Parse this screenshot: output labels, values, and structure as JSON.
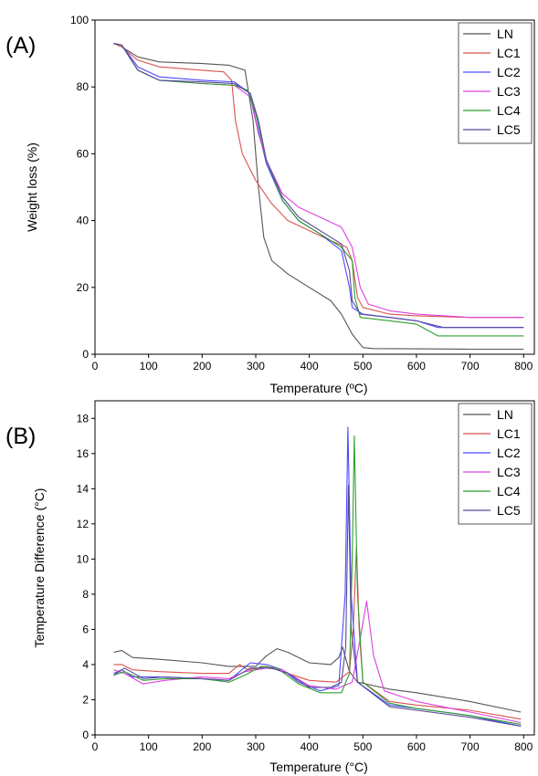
{
  "chart_data": [
    {
      "panel_label": "(A)",
      "type": "line",
      "xlabel": "Temperature (ºC)",
      "ylabel": "Weight loss (%)",
      "xlim": [
        0,
        820
      ],
      "ylim": [
        0,
        100
      ],
      "xticks": [
        0,
        100,
        200,
        300,
        400,
        500,
        600,
        700,
        800
      ],
      "yticks": [
        0,
        20,
        40,
        60,
        80,
        100
      ],
      "legend_position": "top-right",
      "grid": false,
      "series": [
        {
          "name": "LN",
          "color": "#555555",
          "points": [
            [
              35,
              93
            ],
            [
              50,
              92
            ],
            [
              80,
              89
            ],
            [
              120,
              87.5
            ],
            [
              200,
              87
            ],
            [
              250,
              86.5
            ],
            [
              280,
              85
            ],
            [
              295,
              70
            ],
            [
              305,
              50
            ],
            [
              315,
              35
            ],
            [
              330,
              28
            ],
            [
              360,
              24
            ],
            [
              400,
              20
            ],
            [
              440,
              16
            ],
            [
              460,
              12
            ],
            [
              480,
              6
            ],
            [
              500,
              2
            ],
            [
              520,
              1.7
            ],
            [
              600,
              1.6
            ],
            [
              700,
              1.5
            ],
            [
              800,
              1.5
            ]
          ]
        },
        {
          "name": "LC1",
          "color": "#d9534f",
          "points": [
            [
              35,
              93
            ],
            [
              50,
              92
            ],
            [
              80,
              88
            ],
            [
              120,
              86
            ],
            [
              200,
              85
            ],
            [
              240,
              84.5
            ],
            [
              255,
              82
            ],
            [
              262,
              70
            ],
            [
              275,
              60
            ],
            [
              300,
              52
            ],
            [
              330,
              45
            ],
            [
              360,
              40
            ],
            [
              400,
              37
            ],
            [
              440,
              34
            ],
            [
              470,
              32
            ],
            [
              480,
              28
            ],
            [
              490,
              17
            ],
            [
              500,
              14
            ],
            [
              550,
              12
            ],
            [
              600,
              11.5
            ],
            [
              700,
              11
            ],
            [
              800,
              11
            ]
          ]
        },
        {
          "name": "LC2",
          "color": "#4a4aff",
          "points": [
            [
              35,
              93
            ],
            [
              50,
              92.5
            ],
            [
              80,
              86
            ],
            [
              120,
              83
            ],
            [
              200,
              82
            ],
            [
              260,
              81.5
            ],
            [
              290,
              78
            ],
            [
              300,
              70
            ],
            [
              320,
              57
            ],
            [
              350,
              46
            ],
            [
              380,
              40
            ],
            [
              420,
              36
            ],
            [
              460,
              31
            ],
            [
              475,
              20
            ],
            [
              480,
              14
            ],
            [
              500,
              12
            ],
            [
              550,
              11
            ],
            [
              600,
              10
            ],
            [
              640,
              8
            ],
            [
              700,
              8
            ],
            [
              800,
              8
            ]
          ]
        },
        {
          "name": "LC3",
          "color": "#e040e0",
          "points": [
            [
              35,
              93
            ],
            [
              50,
              92.5
            ],
            [
              80,
              85
            ],
            [
              120,
              82
            ],
            [
              200,
              81
            ],
            [
              260,
              80.5
            ],
            [
              290,
              77
            ],
            [
              305,
              66
            ],
            [
              320,
              58
            ],
            [
              350,
              48
            ],
            [
              380,
              44
            ],
            [
              420,
              41
            ],
            [
              460,
              38
            ],
            [
              480,
              32
            ],
            [
              495,
              20
            ],
            [
              510,
              15
            ],
            [
              550,
              13
            ],
            [
              600,
              12
            ],
            [
              700,
              11
            ],
            [
              800,
              11
            ]
          ]
        },
        {
          "name": "LC4",
          "color": "#2ea02e",
          "points": [
            [
              35,
              93
            ],
            [
              50,
              92.5
            ],
            [
              80,
              85
            ],
            [
              120,
              82
            ],
            [
              200,
              81
            ],
            [
              260,
              80.5
            ],
            [
              285,
              79
            ],
            [
              300,
              72
            ],
            [
              320,
              58
            ],
            [
              350,
              46
            ],
            [
              380,
              40
            ],
            [
              420,
              36
            ],
            [
              460,
              32
            ],
            [
              480,
              28
            ],
            [
              485,
              17
            ],
            [
              495,
              11
            ],
            [
              550,
              10
            ],
            [
              600,
              9
            ],
            [
              640,
              5.5
            ],
            [
              700,
              5.5
            ],
            [
              800,
              5.5
            ]
          ]
        },
        {
          "name": "LC5",
          "color": "#5a4a9a",
          "points": [
            [
              35,
              93
            ],
            [
              50,
              92.5
            ],
            [
              80,
              85
            ],
            [
              120,
              82
            ],
            [
              200,
              81.5
            ],
            [
              260,
              81
            ],
            [
              290,
              78
            ],
            [
              305,
              70
            ],
            [
              320,
              58
            ],
            [
              350,
              47
            ],
            [
              380,
              41
            ],
            [
              420,
              37
            ],
            [
              460,
              33
            ],
            [
              475,
              25
            ],
            [
              480,
              16
            ],
            [
              495,
              12
            ],
            [
              550,
              11
            ],
            [
              600,
              10
            ],
            [
              650,
              8
            ],
            [
              700,
              8
            ],
            [
              800,
              8
            ]
          ]
        }
      ]
    },
    {
      "panel_label": "(B)",
      "type": "line",
      "xlabel": "Temperature (°C)",
      "ylabel": "Temperature Difference (°C)",
      "xlim": [
        0,
        820
      ],
      "ylim": [
        0,
        19
      ],
      "xticks": [
        0,
        100,
        200,
        300,
        400,
        500,
        600,
        700,
        800
      ],
      "yticks": [
        0,
        2,
        4,
        6,
        8,
        10,
        12,
        14,
        16,
        18
      ],
      "legend_position": "top-right",
      "grid": false,
      "series": [
        {
          "name": "LN",
          "color": "#555555",
          "points": [
            [
              35,
              4.7
            ],
            [
              50,
              4.8
            ],
            [
              70,
              4.4
            ],
            [
              120,
              4.3
            ],
            [
              200,
              4.1
            ],
            [
              250,
              3.9
            ],
            [
              300,
              3.9
            ],
            [
              320,
              4.5
            ],
            [
              340,
              4.9
            ],
            [
              360,
              4.7
            ],
            [
              400,
              4.1
            ],
            [
              440,
              4.0
            ],
            [
              455,
              4.4
            ],
            [
              462,
              5.0
            ],
            [
              475,
              3.6
            ],
            [
              490,
              3.0
            ],
            [
              550,
              2.6
            ],
            [
              600,
              2.4
            ],
            [
              700,
              1.9
            ],
            [
              795,
              1.3
            ]
          ]
        },
        {
          "name": "LC1",
          "color": "#d9534f",
          "points": [
            [
              35,
              4.0
            ],
            [
              50,
              4.0
            ],
            [
              70,
              3.7
            ],
            [
              120,
              3.6
            ],
            [
              200,
              3.5
            ],
            [
              250,
              3.5
            ],
            [
              270,
              4.0
            ],
            [
              285,
              3.7
            ],
            [
              320,
              3.9
            ],
            [
              350,
              3.6
            ],
            [
              400,
              3.1
            ],
            [
              450,
              3.0
            ],
            [
              475,
              3.6
            ],
            [
              482,
              6
            ],
            [
              488,
              10.7
            ],
            [
              493,
              6
            ],
            [
              500,
              3.0
            ],
            [
              550,
              1.9
            ],
            [
              600,
              1.7
            ],
            [
              700,
              1.4
            ],
            [
              795,
              0.9
            ]
          ]
        },
        {
          "name": "LC2",
          "color": "#4a4aff",
          "points": [
            [
              35,
              3.5
            ],
            [
              50,
              3.7
            ],
            [
              70,
              3.3
            ],
            [
              120,
              3.3
            ],
            [
              200,
              3.2
            ],
            [
              250,
              3.1
            ],
            [
              290,
              4.1
            ],
            [
              320,
              4.0
            ],
            [
              350,
              3.7
            ],
            [
              380,
              3.0
            ],
            [
              420,
              2.5
            ],
            [
              455,
              2.8
            ],
            [
              467,
              8
            ],
            [
              472,
              17.5
            ],
            [
              478,
              8
            ],
            [
              490,
              3.0
            ],
            [
              550,
              1.7
            ],
            [
              600,
              1.5
            ],
            [
              700,
              1.1
            ],
            [
              795,
              0.5
            ]
          ]
        },
        {
          "name": "LC3",
          "color": "#e040e0",
          "points": [
            [
              35,
              3.7
            ],
            [
              55,
              3.5
            ],
            [
              90,
              2.9
            ],
            [
              130,
              3.1
            ],
            [
              200,
              3.3
            ],
            [
              250,
              3.2
            ],
            [
              280,
              3.6
            ],
            [
              320,
              3.8
            ],
            [
              350,
              3.7
            ],
            [
              400,
              2.8
            ],
            [
              450,
              2.6
            ],
            [
              480,
              3.0
            ],
            [
              495,
              5.5
            ],
            [
              507,
              7.6
            ],
            [
              520,
              4.5
            ],
            [
              540,
              2.5
            ],
            [
              600,
              1.9
            ],
            [
              700,
              1.3
            ],
            [
              795,
              0.7
            ]
          ]
        },
        {
          "name": "LC4",
          "color": "#2ea02e",
          "points": [
            [
              35,
              3.4
            ],
            [
              55,
              3.6
            ],
            [
              90,
              3.1
            ],
            [
              130,
              3.2
            ],
            [
              200,
              3.2
            ],
            [
              250,
              3.0
            ],
            [
              280,
              3.4
            ],
            [
              310,
              3.9
            ],
            [
              340,
              3.8
            ],
            [
              380,
              2.9
            ],
            [
              420,
              2.4
            ],
            [
              460,
              2.4
            ],
            [
              475,
              3.5
            ],
            [
              480,
              10
            ],
            [
              484,
              17.0
            ],
            [
              490,
              8
            ],
            [
              500,
              3.0
            ],
            [
              550,
              1.8
            ],
            [
              600,
              1.5
            ],
            [
              700,
              1.1
            ],
            [
              795,
              0.6
            ]
          ]
        },
        {
          "name": "LC5",
          "color": "#5a4a9a",
          "points": [
            [
              35,
              3.4
            ],
            [
              55,
              3.8
            ],
            [
              90,
              3.2
            ],
            [
              130,
              3.3
            ],
            [
              200,
              3.2
            ],
            [
              250,
              3.1
            ],
            [
              290,
              3.8
            ],
            [
              330,
              3.8
            ],
            [
              360,
              3.5
            ],
            [
              400,
              2.7
            ],
            [
              440,
              2.7
            ],
            [
              460,
              3.0
            ],
            [
              468,
              5
            ],
            [
              473,
              14.2
            ],
            [
              478,
              6
            ],
            [
              490,
              3.0
            ],
            [
              550,
              1.6
            ],
            [
              600,
              1.4
            ],
            [
              700,
              1.0
            ],
            [
              795,
              0.5
            ]
          ]
        }
      ]
    }
  ]
}
